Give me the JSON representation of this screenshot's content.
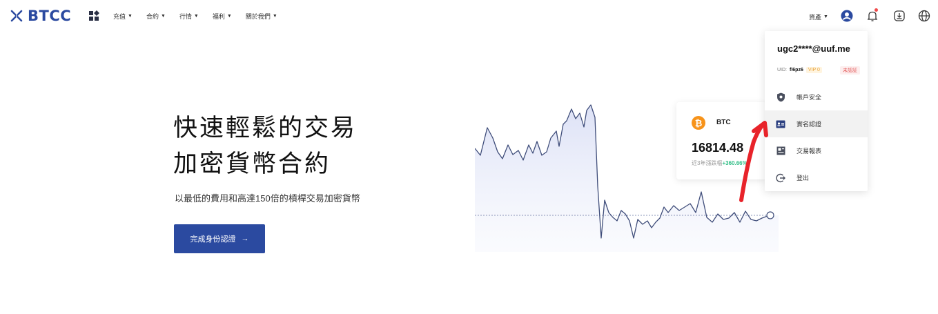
{
  "brand": {
    "name": "BTCC",
    "color": "#2b4aa0"
  },
  "nav": {
    "items": [
      {
        "label": "充值",
        "caret": "▼"
      },
      {
        "label": "合約",
        "caret": "▼"
      },
      {
        "label": "行情",
        "caret": "▼"
      },
      {
        "label": "福利",
        "caret": "▼"
      },
      {
        "label": "關於我們",
        "caret": "▼"
      }
    ],
    "assets": {
      "label": "資產",
      "caret": "▼"
    },
    "icons": [
      "user-icon",
      "bell-icon",
      "download-icon",
      "globe-icon"
    ]
  },
  "hero": {
    "title_line1": "快速輕鬆的交易",
    "title_line2": "加密貨幣合約",
    "subtitle": "以最低的費用和高達150倍的槓桿交易加密貨幣",
    "cta_label": "完成身份認證",
    "cta_arrow": "→"
  },
  "btc_card": {
    "symbol": "BTC",
    "price": "16814.48",
    "change_label": "近3年漲跌幅",
    "change_value": "+360.66%"
  },
  "account_menu": {
    "email": "ugc2****@uuf.me",
    "uid_label": "UID:",
    "uid_value": "fi6pz6",
    "vip": "VIP 0",
    "verify_status": "未認証",
    "items": [
      {
        "label": "帳戶安全",
        "icon": "shield-icon"
      },
      {
        "label": "實名認證",
        "icon": "id-card-icon",
        "active": true
      },
      {
        "label": "交易報表",
        "icon": "report-icon"
      },
      {
        "label": "登出",
        "icon": "logout-icon"
      }
    ]
  },
  "colors": {
    "primary": "#2b4aa0",
    "chart_line": "#3f4d7a",
    "positive": "#2ebd85",
    "btc_orange": "#f7931a",
    "annotation_red": "#e8232a"
  }
}
